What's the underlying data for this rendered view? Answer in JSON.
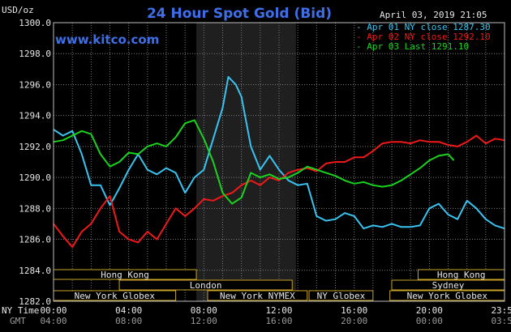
{
  "chart_data": {
    "type": "line",
    "title": "24 Hour Spot Gold (Bid)",
    "brand": "www.kitco.com",
    "timestamp": "April 03, 2019 21:05",
    "ylabel": "USD/oz",
    "ylim": [
      1282.0,
      1300.0
    ],
    "y_ticks": [
      "1300.0",
      "1298.0",
      "1296.0",
      "1294.0",
      "1292.0",
      "1290.0",
      "1288.0",
      "1286.0",
      "1284.0",
      "1282.0"
    ],
    "x_range": [
      0,
      24
    ],
    "x_ticks": [
      0,
      4,
      8,
      12,
      16,
      20,
      24
    ],
    "x_tick_labels_ny": [
      "00:00",
      "04:00",
      "08:00",
      "12:00",
      "16:00",
      "20:00",
      "23:59"
    ],
    "x_tick_labels_gmt": [
      "04:00",
      "08:00",
      "12:00",
      "16:00",
      "20:00",
      "00:00",
      "03:59"
    ],
    "x_axis_name_ny": "NY Time",
    "x_axis_name_gmt": "GMT",
    "shaded_range": [
      7.6,
      12.9
    ],
    "grid": true,
    "legend": [
      {
        "text": "Apr 01 NY close 1287.30",
        "color": "#38c4f0"
      },
      {
        "text": "Apr 02 NY close 1292.10",
        "color": "#f01818"
      },
      {
        "text": "Apr 03 Last 1291.10",
        "color": "#19d41e"
      }
    ],
    "series": [
      {
        "color": "#38c4f0",
        "x": [
          0,
          0.5,
          1,
          1.5,
          2,
          2.5,
          3,
          3.5,
          4,
          4.5,
          5,
          5.5,
          6,
          6.5,
          7,
          7.5,
          8,
          8.5,
          9,
          9.3,
          9.7,
          10,
          10.5,
          11,
          11.5,
          12,
          12.5,
          13,
          13.5,
          14,
          14.5,
          15,
          15.5,
          16,
          16.5,
          17,
          17.5,
          18,
          18.5,
          19,
          19.5,
          20,
          20.5,
          21,
          21.5,
          22,
          22.5,
          23,
          23.5,
          24
        ],
        "values": [
          1293.1,
          1292.7,
          1293.0,
          1291.5,
          1289.5,
          1289.5,
          1288.2,
          1289.3,
          1290.5,
          1291.5,
          1290.5,
          1290.2,
          1290.6,
          1290.3,
          1289.0,
          1290.0,
          1290.5,
          1292.5,
          1294.5,
          1296.5,
          1296.0,
          1295.2,
          1292.0,
          1290.5,
          1291.4,
          1290.5,
          1289.8,
          1289.5,
          1289.6,
          1287.5,
          1287.2,
          1287.3,
          1287.7,
          1287.5,
          1286.7,
          1286.9,
          1286.8,
          1287.0,
          1286.8,
          1286.8,
          1286.9,
          1288.0,
          1288.3,
          1287.6,
          1287.3,
          1288.5,
          1288.0,
          1287.3,
          1286.9,
          1286.7
        ]
      },
      {
        "color": "#f01818",
        "x": [
          0,
          0.5,
          1,
          1.5,
          2,
          2.5,
          3,
          3.5,
          4,
          4.5,
          5,
          5.5,
          6,
          6.5,
          7,
          7.5,
          8,
          8.5,
          9,
          9.5,
          10,
          10.5,
          11,
          11.5,
          12,
          12.5,
          13,
          13.5,
          14,
          14.5,
          15,
          15.5,
          16,
          16.5,
          17,
          17.5,
          18,
          18.5,
          19,
          19.5,
          20,
          20.5,
          21,
          21.5,
          22,
          22.5,
          23,
          23.5,
          24
        ],
        "values": [
          1287.0,
          1286.2,
          1285.5,
          1286.5,
          1287.0,
          1288.0,
          1288.8,
          1286.5,
          1286.0,
          1285.8,
          1286.5,
          1286.0,
          1287.0,
          1288.0,
          1287.5,
          1288.0,
          1288.6,
          1288.5,
          1288.8,
          1289.0,
          1289.5,
          1289.8,
          1289.5,
          1290.0,
          1289.8,
          1290.3,
          1290.5,
          1290.6,
          1290.4,
          1290.9,
          1291.0,
          1291.0,
          1291.3,
          1291.3,
          1291.7,
          1292.2,
          1292.3,
          1292.3,
          1292.2,
          1292.4,
          1292.3,
          1292.3,
          1292.1,
          1292.0,
          1292.3,
          1292.7,
          1292.2,
          1292.5,
          1292.4
        ]
      },
      {
        "color": "#19d41e",
        "x": [
          0,
          0.5,
          1,
          1.5,
          2,
          2.5,
          3,
          3.5,
          4,
          4.5,
          5,
          5.5,
          6,
          6.5,
          7,
          7.5,
          8,
          8.5,
          9,
          9.5,
          10,
          10.5,
          11,
          11.5,
          12,
          12.5,
          13,
          13.5,
          14,
          14.5,
          15,
          15.5,
          16,
          16.5,
          17,
          17.5,
          18,
          18.5,
          19,
          19.5,
          20,
          20.5,
          21,
          21.3
        ],
        "values": [
          1292.3,
          1292.4,
          1292.7,
          1293.0,
          1292.8,
          1291.5,
          1290.7,
          1291.0,
          1291.6,
          1291.5,
          1292.0,
          1292.2,
          1292.0,
          1292.6,
          1293.5,
          1293.7,
          1292.5,
          1291.0,
          1289.0,
          1288.3,
          1288.7,
          1290.3,
          1290.0,
          1290.2,
          1289.9,
          1290.0,
          1290.3,
          1290.7,
          1290.5,
          1290.3,
          1290.1,
          1289.8,
          1289.6,
          1289.7,
          1289.5,
          1289.4,
          1289.5,
          1289.8,
          1290.2,
          1290.6,
          1291.1,
          1291.4,
          1291.5,
          1291.1
        ]
      }
    ],
    "markets": [
      {
        "label": "Hong Kong",
        "start": -0.5,
        "end": 7.6,
        "row": 0
      },
      {
        "label": "Hong Kong",
        "start": 19.4,
        "end": 24.5,
        "row": 0
      },
      {
        "label": "London",
        "start": 3.5,
        "end": 12.7,
        "row": 1
      },
      {
        "label": "Sydney",
        "start": 18.0,
        "end": 24.5,
        "row": 1
      },
      {
        "label": "New York Globex",
        "start": -0.5,
        "end": 6.5,
        "row": 2
      },
      {
        "label": "New York NYMEX",
        "start": 8.2,
        "end": 13.5,
        "row": 2
      },
      {
        "label": "NY Globex",
        "start": 13.6,
        "end": 17.0,
        "row": 2
      },
      {
        "label": "New York Globex",
        "start": 17.9,
        "end": 24.5,
        "row": 2
      }
    ]
  }
}
